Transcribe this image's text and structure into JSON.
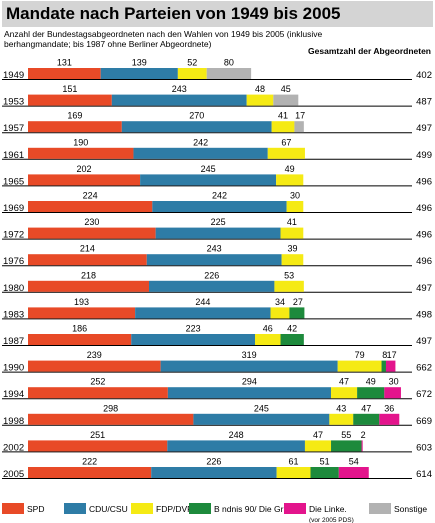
{
  "chart_data": {
    "type": "bar",
    "stacked": true,
    "orientation": "horizontal",
    "title": "Mandate nach Parteien von 1949 bis 2005",
    "subtitle": "Anzahl der Bundestagsabgeordneten nach den Wahlen von 1949 bis 2005 (inklusive  berhangmandate;  bis 1987 ohne Berliner Abgeordnete)",
    "total_header": "Gesamtzahl der Abgeordneten",
    "categories": [
      "1949",
      "1953",
      "1957",
      "1961",
      "1965",
      "1969",
      "1972",
      "1976",
      "1980",
      "1983",
      "1987",
      "1990",
      "1994",
      "1998",
      "2002",
      "2005"
    ],
    "series": [
      {
        "name": "SPD",
        "color": "#e84a27",
        "values": [
          131,
          151,
          169,
          190,
          202,
          224,
          230,
          214,
          218,
          193,
          186,
          239,
          252,
          298,
          251,
          222
        ]
      },
      {
        "name": "CDU/CSU",
        "color": "#2e7ca6",
        "values": [
          139,
          243,
          270,
          242,
          245,
          242,
          225,
          243,
          226,
          244,
          223,
          319,
          294,
          245,
          248,
          226
        ]
      },
      {
        "name": "FDP/DVP",
        "color": "#f5ea14",
        "values": [
          52,
          48,
          41,
          67,
          49,
          30,
          41,
          39,
          53,
          34,
          46,
          79,
          47,
          43,
          47,
          61
        ]
      },
      {
        "name": "B ndnis 90/ Die Gr nen",
        "color": "#1d8a3c",
        "values": [
          0,
          0,
          0,
          0,
          0,
          0,
          0,
          0,
          0,
          27,
          42,
          8,
          49,
          47,
          55,
          51
        ]
      },
      {
        "name": "Die Linke.",
        "note": "(vor 2005 PDS)",
        "color": "#e3148c",
        "values": [
          0,
          0,
          0,
          0,
          0,
          0,
          0,
          0,
          0,
          0,
          0,
          17,
          30,
          36,
          2,
          54
        ]
      },
      {
        "name": "Sonstige",
        "color": "#b2b2b2",
        "values": [
          80,
          45,
          17,
          0,
          0,
          0,
          0,
          0,
          0,
          0,
          0,
          0,
          0,
          0,
          0,
          0
        ]
      }
    ],
    "totals": [
      402,
      487,
      497,
      499,
      496,
      496,
      496,
      496,
      497,
      498,
      497,
      662,
      672,
      669,
      603,
      614
    ],
    "legend_position": "bottom"
  }
}
